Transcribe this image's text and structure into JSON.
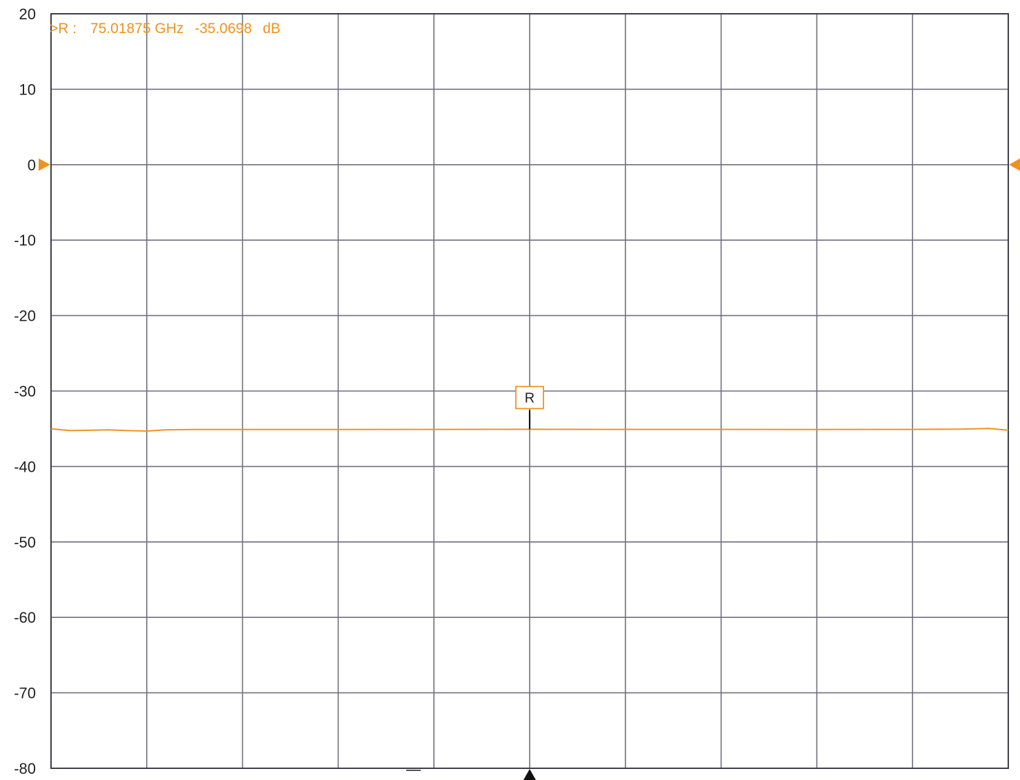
{
  "colors": {
    "trace": "#f0921e",
    "grid": "#6e6e80",
    "text": "#222222",
    "background": "#ffffff"
  },
  "marker": {
    "readout_prefix": ">R :",
    "readout_freq": "75.01875 GHz",
    "readout_value": "-35.0698",
    "readout_unit": "dB",
    "label": "R",
    "x_fraction": 0.5,
    "value_db": -35.0698
  },
  "reference_level": {
    "value_db": 0,
    "icon": "triangle-right-icon"
  },
  "stimulus_marker": {
    "icon": "triangle-up-icon"
  },
  "chart_data": {
    "type": "line",
    "title": "",
    "xlabel": "",
    "ylabel": "",
    "ylim": [
      -80,
      20
    ],
    "y_ticks": [
      "20",
      "10",
      "0",
      "-10",
      "-20",
      "-30",
      "-40",
      "-50",
      "-60",
      "-70",
      "-80"
    ],
    "x_divisions": 10,
    "grid": true,
    "legend": "none",
    "series": [
      {
        "color": "#f0921e",
        "x": [
          0,
          0.02,
          0.04,
          0.06,
          0.08,
          0.1,
          0.12,
          0.15,
          0.2,
          0.3,
          0.4,
          0.5,
          0.6,
          0.7,
          0.8,
          0.9,
          0.95,
          0.98,
          1.0
        ],
        "y": [
          -35.0,
          -35.25,
          -35.2,
          -35.15,
          -35.25,
          -35.3,
          -35.15,
          -35.1,
          -35.1,
          -35.1,
          -35.08,
          -35.07,
          -35.08,
          -35.08,
          -35.1,
          -35.08,
          -35.05,
          -34.95,
          -35.2
        ]
      }
    ]
  }
}
